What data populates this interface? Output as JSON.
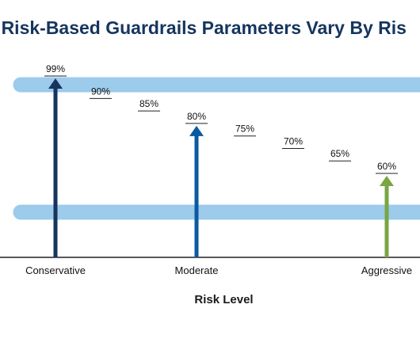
{
  "chart": {
    "title": "le Risk-Based Guardrails Parameters Vary By Ris",
    "xlabel": "Risk Level"
  },
  "colors": {
    "band": "#9ccbeb",
    "conservative": "#15355e",
    "moderate": "#0a5aa1",
    "aggressive": "#79a543",
    "axis": "#222222",
    "title": "#15355e"
  },
  "chart_data": {
    "type": "bar",
    "title": "le Risk-Based Guardrails Parameters Vary By Ris",
    "xlabel": "Risk Level",
    "ylabel": "",
    "categories": [
      "Conservative",
      "Moderate",
      "Aggressive"
    ],
    "values": [
      99,
      80,
      60
    ],
    "value_labels": [
      "99%",
      "80%",
      "60%"
    ],
    "intermediate_labels": [
      "90%",
      "85%",
      "75%",
      "70%",
      "65%"
    ],
    "intermediate_values": [
      90,
      85,
      75,
      70,
      65
    ],
    "bands": [
      "upper",
      "lower"
    ],
    "grid": false,
    "legend": "none"
  }
}
